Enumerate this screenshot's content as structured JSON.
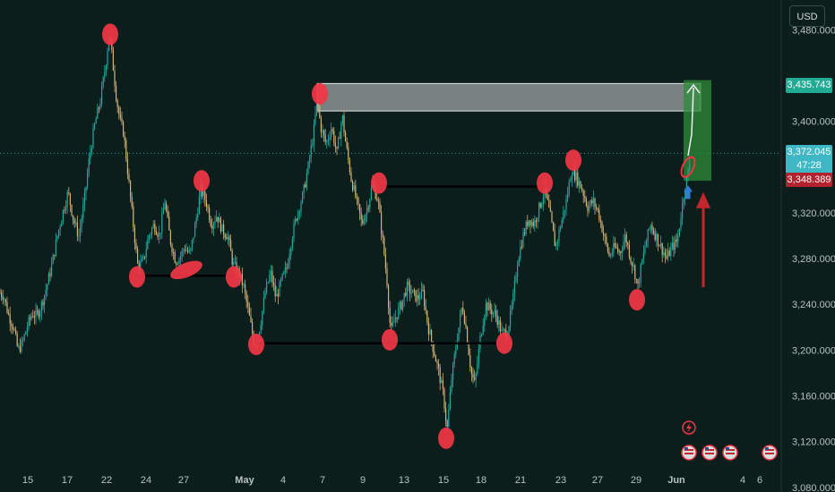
{
  "currency_button": "USD",
  "price_labels": {
    "target": "3,435.743",
    "current": "3,372.045",
    "countdown": "47:28",
    "entry": "3,348.389"
  },
  "colors": {
    "background": "#0c1e1b",
    "candle": "#2aa5a0",
    "markers": "#f23645",
    "target_tag": "#22ab94",
    "current_tag": "#3fb8c5",
    "entry_tag": "#b2232f",
    "target_box": "#2e8b3a",
    "resistance_box": "#d1d4d3"
  },
  "icons": [
    "lightning-event-icon",
    "us-flag-event-icon",
    "us-flag-event-icon",
    "us-flag-event-icon",
    "us-flag-event-icon"
  ],
  "chart_data": {
    "type": "line",
    "title": "",
    "xlabel": "",
    "ylabel": "",
    "x_ticks": [
      "15",
      "17",
      "22",
      "24",
      "27",
      "May",
      "4",
      "7",
      "9",
      "13",
      "15",
      "18",
      "21",
      "23",
      "27",
      "29",
      "Jun",
      "4",
      "6"
    ],
    "y_ticks": [
      "3,480.000",
      "3,400.000",
      "3,320.000",
      "3,280.000",
      "3,240.000",
      "3,200.000",
      "3,160.000",
      "3,120.000",
      "3,080.000"
    ],
    "ylim": [
      3076,
      3506
    ],
    "price_path": [
      [
        0,
        3250
      ],
      [
        4,
        3248
      ],
      [
        9,
        3232
      ],
      [
        15,
        3220
      ],
      [
        20,
        3200
      ],
      [
        25,
        3206
      ],
      [
        30,
        3220
      ],
      [
        36,
        3232
      ],
      [
        40,
        3230
      ],
      [
        45,
        3236
      ],
      [
        52,
        3255
      ],
      [
        58,
        3275
      ],
      [
        64,
        3300
      ],
      [
        70,
        3320
      ],
      [
        76,
        3338
      ],
      [
        82,
        3314
      ],
      [
        88,
        3300
      ],
      [
        94,
        3330
      ],
      [
        100,
        3370
      ],
      [
        106,
        3398
      ],
      [
        112,
        3418
      ],
      [
        118,
        3450
      ],
      [
        122,
        3478
      ],
      [
        126,
        3450
      ],
      [
        130,
        3420
      ],
      [
        134,
        3400
      ],
      [
        138,
        3390
      ],
      [
        142,
        3360
      ],
      [
        146,
        3330
      ],
      [
        150,
        3300
      ],
      [
        154,
        3272
      ],
      [
        160,
        3278
      ],
      [
        166,
        3300
      ],
      [
        172,
        3310
      ],
      [
        178,
        3300
      ],
      [
        184,
        3330
      ],
      [
        190,
        3296
      ],
      [
        196,
        3278
      ],
      [
        200,
        3280
      ],
      [
        206,
        3290
      ],
      [
        212,
        3283
      ],
      [
        218,
        3310
      ],
      [
        224,
        3340
      ],
      [
        230,
        3330
      ],
      [
        236,
        3310
      ],
      [
        242,
        3318
      ],
      [
        248,
        3305
      ],
      [
        254,
        3300
      ],
      [
        260,
        3275
      ],
      [
        266,
        3268
      ],
      [
        272,
        3255
      ],
      [
        278,
        3230
      ],
      [
        284,
        3205
      ],
      [
        290,
        3220
      ],
      [
        296,
        3250
      ],
      [
        302,
        3268
      ],
      [
        308,
        3245
      ],
      [
        314,
        3260
      ],
      [
        320,
        3272
      ],
      [
        326,
        3300
      ],
      [
        332,
        3320
      ],
      [
        338,
        3335
      ],
      [
        344,
        3360
      ],
      [
        350,
        3390
      ],
      [
        354,
        3420
      ],
      [
        358,
        3395
      ],
      [
        364,
        3380
      ],
      [
        370,
        3395
      ],
      [
        376,
        3372
      ],
      [
        382,
        3405
      ],
      [
        386,
        3380
      ],
      [
        392,
        3350
      ],
      [
        398,
        3330
      ],
      [
        404,
        3310
      ],
      [
        410,
        3325
      ],
      [
        416,
        3345
      ],
      [
        422,
        3330
      ],
      [
        428,
        3290
      ],
      [
        432,
        3260
      ],
      [
        436,
        3215
      ],
      [
        442,
        3230
      ],
      [
        448,
        3240
      ],
      [
        454,
        3255
      ],
      [
        460,
        3250
      ],
      [
        466,
        3245
      ],
      [
        472,
        3250
      ],
      [
        478,
        3220
      ],
      [
        484,
        3200
      ],
      [
        490,
        3180
      ],
      [
        495,
        3160
      ],
      [
        499,
        3130
      ],
      [
        504,
        3175
      ],
      [
        510,
        3210
      ],
      [
        516,
        3240
      ],
      [
        520,
        3220
      ],
      [
        526,
        3180
      ],
      [
        530,
        3170
      ],
      [
        536,
        3210
      ],
      [
        542,
        3240
      ],
      [
        548,
        3235
      ],
      [
        554,
        3230
      ],
      [
        560,
        3215
      ],
      [
        566,
        3215
      ],
      [
        572,
        3240
      ],
      [
        578,
        3280
      ],
      [
        584,
        3300
      ],
      [
        590,
        3315
      ],
      [
        596,
        3310
      ],
      [
        602,
        3325
      ],
      [
        608,
        3340
      ],
      [
        614,
        3318
      ],
      [
        620,
        3290
      ],
      [
        626,
        3310
      ],
      [
        632,
        3330
      ],
      [
        638,
        3358
      ],
      [
        644,
        3350
      ],
      [
        650,
        3340
      ],
      [
        656,
        3325
      ],
      [
        662,
        3330
      ],
      [
        668,
        3320
      ],
      [
        674,
        3300
      ],
      [
        680,
        3282
      ],
      [
        686,
        3290
      ],
      [
        692,
        3285
      ],
      [
        698,
        3300
      ],
      [
        704,
        3280
      ],
      [
        708,
        3270
      ],
      [
        712,
        3255
      ],
      [
        716,
        3275
      ],
      [
        720,
        3290
      ],
      [
        726,
        3310
      ],
      [
        732,
        3300
      ],
      [
        738,
        3290
      ],
      [
        744,
        3280
      ],
      [
        750,
        3290
      ],
      [
        756,
        3295
      ],
      [
        760,
        3318
      ],
      [
        764,
        3340
      ],
      [
        768,
        3355
      ],
      [
        771,
        3372
      ]
    ],
    "annotations": {
      "support_lines": [
        {
          "x1": 153,
          "x2": 262,
          "price": 3265
        },
        {
          "x1": 285,
          "x2": 565,
          "price": 3206
        },
        {
          "x1": 422,
          "x2": 610,
          "price": 3343
        }
      ],
      "resistance_box": {
        "x1": 354,
        "x2": 782,
        "price_top": 3433,
        "price_bottom": 3409
      },
      "target_box": {
        "x1": 763,
        "x2": 794,
        "price_top": 3436,
        "price_bottom": 3348
      },
      "circle_markers": [
        {
          "x": 123,
          "price": 3476
        },
        {
          "x": 225,
          "price": 3348
        },
        {
          "x": 153,
          "price": 3264
        },
        {
          "x": 261,
          "price": 3264
        },
        {
          "x": 423,
          "price": 3346
        },
        {
          "x": 286,
          "price": 3205
        },
        {
          "x": 435,
          "price": 3209
        },
        {
          "x": 563,
          "price": 3206
        },
        {
          "x": 608,
          "price": 3346
        },
        {
          "x": 640,
          "price": 3366
        },
        {
          "x": 711,
          "price": 3244
        },
        {
          "x": 498,
          "price": 3123
        },
        {
          "x": 357,
          "price": 3424
        }
      ],
      "ellipse_marker": {
        "x": 208,
        "price": 3270
      },
      "arrow_up_red": {
        "x": 785,
        "price_from": 3255,
        "price_to": 3335
      },
      "arrow_up_blue": {
        "x": 768,
        "price": 3340
      }
    }
  }
}
